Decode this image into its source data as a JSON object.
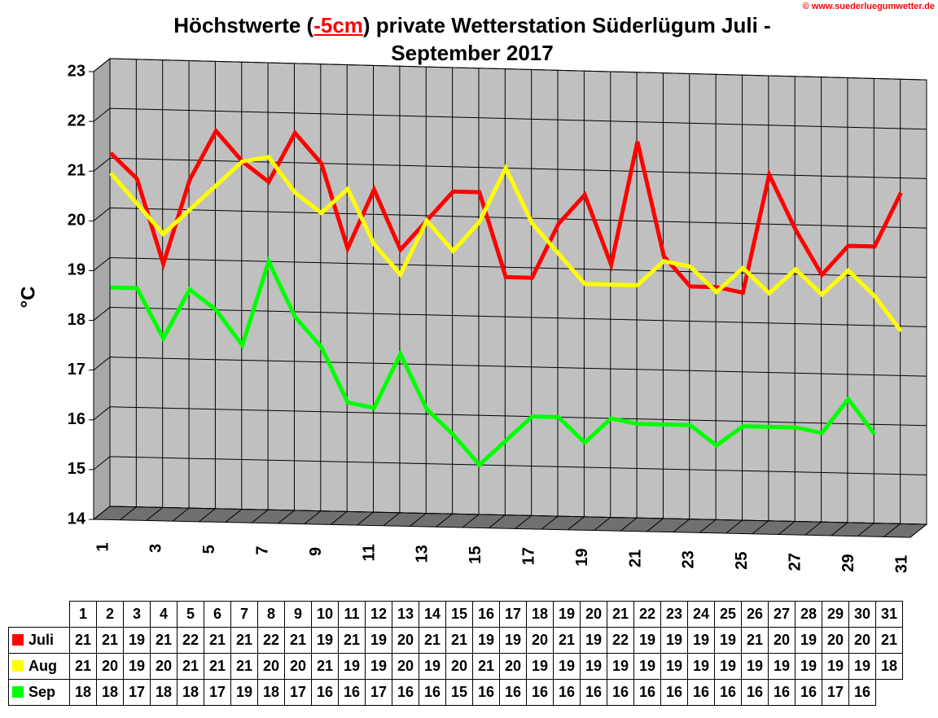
{
  "chart_data": {
    "type": "line",
    "title": {
      "before": "Höchstwerte (",
      "highlight": "-5cm",
      "after": ") private Wetterstation Süderlügum Juli - September 2017"
    },
    "copyright": "© www.suederluegumwetter.de",
    "y_label": "°C",
    "categories": [
      1,
      2,
      3,
      4,
      5,
      6,
      7,
      8,
      9,
      10,
      11,
      12,
      13,
      14,
      15,
      16,
      17,
      18,
      19,
      20,
      21,
      22,
      23,
      24,
      25,
      26,
      27,
      28,
      29,
      30,
      31
    ],
    "ylim": [
      14,
      23
    ],
    "yticks": [
      14,
      15,
      16,
      17,
      18,
      19,
      20,
      21,
      22,
      23
    ],
    "grid": true,
    "series": [
      {
        "name": "Juli",
        "color": "#ff0000",
        "values": [
          21.1,
          20.6,
          18.9,
          20.6,
          21.6,
          21.0,
          20.6,
          21.6,
          21.0,
          19.3,
          20.5,
          19.3,
          19.9,
          20.5,
          20.5,
          18.8,
          18.8,
          19.9,
          20.5,
          19.1,
          21.6,
          19.3,
          18.7,
          18.7,
          18.6,
          21.0,
          19.9,
          19.0,
          19.6,
          19.6,
          20.7
        ],
        "value_labels": [
          "21",
          "21",
          "19",
          "21",
          "22",
          "21",
          "21",
          "22",
          "21",
          "19",
          "21",
          "19",
          "20",
          "21",
          "21",
          "19",
          "19",
          "20",
          "21",
          "19",
          "22",
          "19",
          "19",
          "19",
          "19",
          "21",
          "20",
          "19",
          "20",
          "20",
          "21"
        ]
      },
      {
        "name": "Aug",
        "color": "#ffff00",
        "values": [
          20.7,
          20.1,
          19.5,
          20.0,
          20.5,
          21.0,
          21.1,
          20.4,
          20.0,
          20.5,
          19.4,
          18.8,
          19.9,
          19.3,
          19.9,
          21.0,
          19.9,
          19.3,
          18.7,
          18.7,
          18.7,
          19.2,
          19.1,
          18.6,
          19.1,
          18.6,
          19.1,
          18.6,
          19.1,
          18.6,
          17.9
        ],
        "value_labels": [
          "21",
          "20",
          "19",
          "20",
          "21",
          "21",
          "21",
          "20",
          "20",
          "21",
          "19",
          "19",
          "20",
          "19",
          "20",
          "21",
          "20",
          "19",
          "19",
          "19",
          "19",
          "19",
          "19",
          "19",
          "19",
          "19",
          "19",
          "19",
          "19",
          "19",
          "18"
        ]
      },
      {
        "name": "Sep",
        "color": "#00ff00",
        "values": [
          18.4,
          18.4,
          17.4,
          18.4,
          18.0,
          17.3,
          19.0,
          17.9,
          17.3,
          16.2,
          16.1,
          17.2,
          16.1,
          15.6,
          15.0,
          15.5,
          16.0,
          16.0,
          15.5,
          16.0,
          15.9,
          15.9,
          15.9,
          15.5,
          15.9,
          15.9,
          15.9,
          15.8,
          16.5,
          15.8,
          null
        ],
        "value_labels": [
          "18",
          "18",
          "17",
          "18",
          "18",
          "17",
          "19",
          "18",
          "17",
          "16",
          "16",
          "17",
          "16",
          "16",
          "15",
          "16",
          "16",
          "16",
          "16",
          "16",
          "16",
          "16",
          "16",
          "16",
          "16",
          "16",
          "16",
          "16",
          "17",
          "16",
          null
        ]
      }
    ]
  }
}
